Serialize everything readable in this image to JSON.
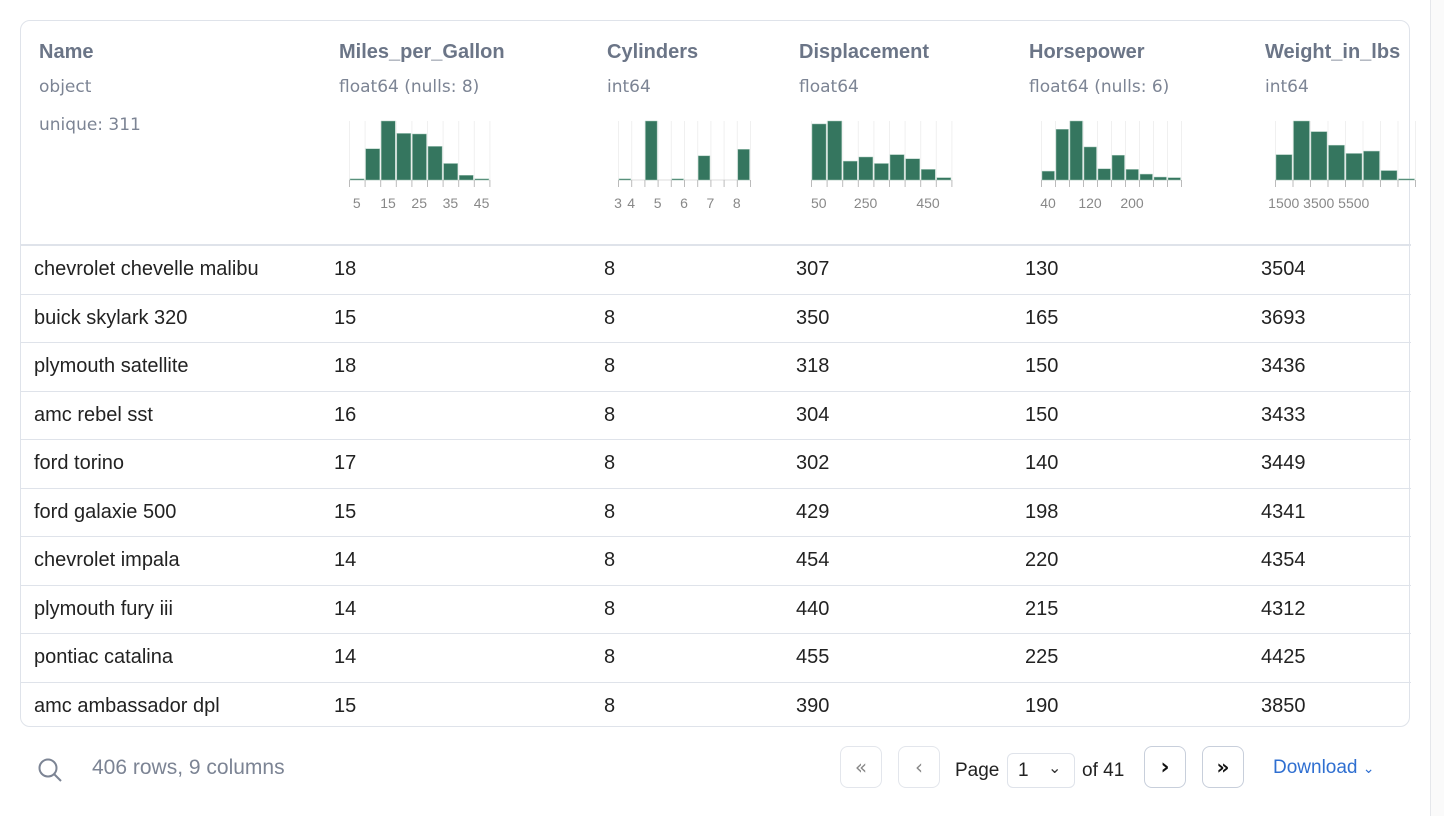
{
  "columns": [
    {
      "name": "Name",
      "type": "object",
      "unique": "unique: 311"
    },
    {
      "name": "Miles_per_Gallon",
      "type": "float64",
      "nulls": "(nulls: 8)"
    },
    {
      "name": "Cylinders",
      "type": "int64"
    },
    {
      "name": "Displacement",
      "type": "float64"
    },
    {
      "name": "Horsepower",
      "type": "float64",
      "nulls": "(nulls: 6)"
    },
    {
      "name": "Weight_in_lbs",
      "type": "int64"
    }
  ],
  "chart_data": [
    {
      "type": "bar",
      "column": "Miles_per_Gallon",
      "relative_heights": [
        0.02,
        0.53,
        1.0,
        0.79,
        0.78,
        0.57,
        0.28,
        0.08,
        0.02
      ],
      "tick_labels": [
        "5",
        "15",
        "25",
        "35",
        "45"
      ],
      "color": "#35765f"
    },
    {
      "type": "bar",
      "column": "Cylinders",
      "relative_heights": [
        0.02,
        0,
        1.0,
        0,
        0.02,
        0,
        0.41,
        0,
        0,
        0.52
      ],
      "tick_labels": [
        "3",
        "4",
        "5",
        "6",
        "7",
        "8"
      ],
      "color": "#35765f"
    },
    {
      "type": "bar",
      "column": "Displacement",
      "relative_heights": [
        0.95,
        1.0,
        0.32,
        0.39,
        0.28,
        0.43,
        0.36,
        0.18,
        0.04
      ],
      "tick_labels": [
        "50",
        "250",
        "450"
      ],
      "color": "#35765f"
    },
    {
      "type": "bar",
      "column": "Horsepower",
      "relative_heights": [
        0.15,
        0.86,
        1.0,
        0.56,
        0.19,
        0.42,
        0.18,
        0.1,
        0.05,
        0.04
      ],
      "tick_labels": [
        "40",
        "120",
        "200"
      ],
      "color": "#35765f"
    },
    {
      "type": "bar",
      "column": "Weight_in_lbs",
      "relative_heights": [
        0.43,
        1.0,
        0.82,
        0.59,
        0.45,
        0.49,
        0.16,
        0.02
      ],
      "tick_labels": [
        "1500",
        "3500",
        "5500"
      ],
      "color": "#35765f"
    }
  ],
  "rows": [
    [
      "chevrolet chevelle malibu",
      "18",
      "8",
      "307",
      "130",
      "3504"
    ],
    [
      "buick skylark 320",
      "15",
      "8",
      "350",
      "165",
      "3693"
    ],
    [
      "plymouth satellite",
      "18",
      "8",
      "318",
      "150",
      "3436"
    ],
    [
      "amc rebel sst",
      "16",
      "8",
      "304",
      "150",
      "3433"
    ],
    [
      "ford torino",
      "17",
      "8",
      "302",
      "140",
      "3449"
    ],
    [
      "ford galaxie 500",
      "15",
      "8",
      "429",
      "198",
      "4341"
    ],
    [
      "chevrolet impala",
      "14",
      "8",
      "454",
      "220",
      "4354"
    ],
    [
      "plymouth fury iii",
      "14",
      "8",
      "440",
      "215",
      "4312"
    ],
    [
      "pontiac catalina",
      "14",
      "8",
      "455",
      "225",
      "4425"
    ],
    [
      "amc ambassador dpl",
      "15",
      "8",
      "390",
      "190",
      "3850"
    ]
  ],
  "footer": {
    "summary": "406 rows, 9 columns",
    "page_label": "Page",
    "page_value": "1",
    "of_label": "of 41",
    "download": "Download"
  }
}
